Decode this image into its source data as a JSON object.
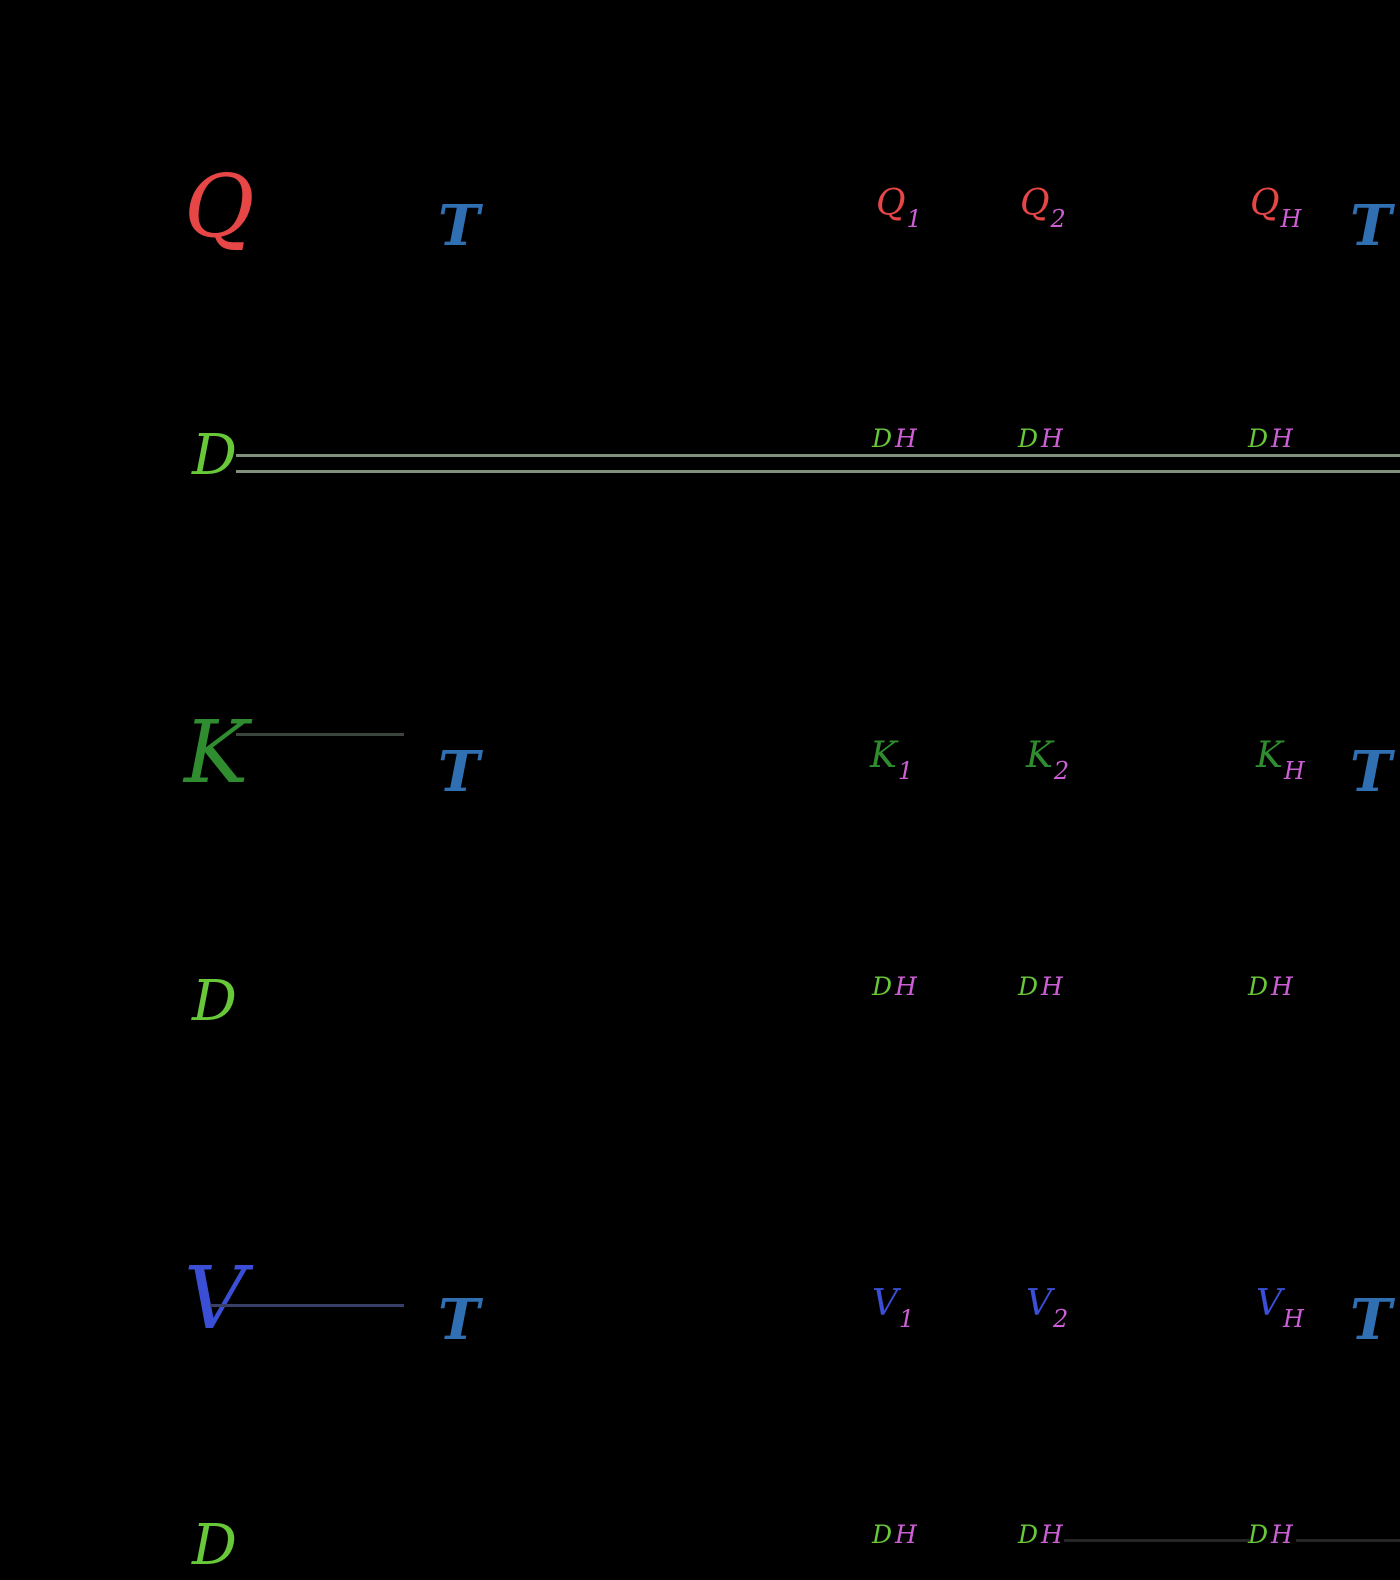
{
  "colors": {
    "background": "#000000",
    "query": "#e64646",
    "key": "#2f8c2f",
    "value": "#3a4fd6",
    "dim": "#68c83a",
    "seq": "#2f6fb2",
    "head": "#cc5fd6",
    "line_green": "#7f917a",
    "line_key": "#3d463d",
    "line_value": "#38406a",
    "line_dark": "#262626"
  },
  "symbols": {
    "q": "Q",
    "k": "K",
    "v": "V",
    "d": "D",
    "t": "T",
    "h": "H"
  },
  "index_labels": [
    "1",
    "2",
    "H"
  ],
  "rows": [
    {
      "id": "query",
      "symbol": "Q",
      "color_key": "query"
    },
    {
      "id": "key",
      "symbol": "K",
      "color_key": "key"
    },
    {
      "id": "value",
      "symbol": "V",
      "color_key": "value"
    }
  ]
}
